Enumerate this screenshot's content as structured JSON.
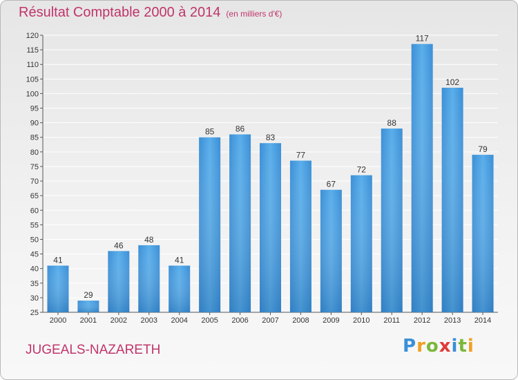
{
  "title": "Résultat Comptable 2000 à 2014",
  "subtitle": "(en milliers d'€)",
  "town": "JUGEALS-NAZARETH",
  "logo": {
    "letters": [
      "P",
      "r",
      "o",
      "x",
      "i",
      "t",
      "i"
    ],
    "colors": [
      "#3a8fd8",
      "#f0a020",
      "#7ab83a",
      "#e03a3a",
      "#3a8fd8",
      "#7ab83a",
      "#f0a020"
    ]
  },
  "colors": {
    "bar": "#4a9fe0",
    "title": "#c0346b"
  },
  "chart_data": {
    "type": "bar",
    "categories": [
      "2000",
      "2001",
      "2002",
      "2003",
      "2004",
      "2005",
      "2006",
      "2007",
      "2008",
      "2009",
      "2010",
      "2011",
      "2012",
      "2013",
      "2014"
    ],
    "values": [
      41,
      29,
      46,
      48,
      41,
      85,
      86,
      83,
      77,
      67,
      72,
      88,
      117,
      102,
      79
    ],
    "title": "Résultat Comptable 2000 à 2014",
    "xlabel": "",
    "ylabel": "",
    "ylim": [
      25,
      120
    ],
    "yticks": [
      25,
      30,
      35,
      40,
      45,
      50,
      55,
      60,
      65,
      70,
      75,
      80,
      85,
      90,
      95,
      100,
      105,
      110,
      115,
      120
    ],
    "grid": true,
    "data_labels": true
  }
}
